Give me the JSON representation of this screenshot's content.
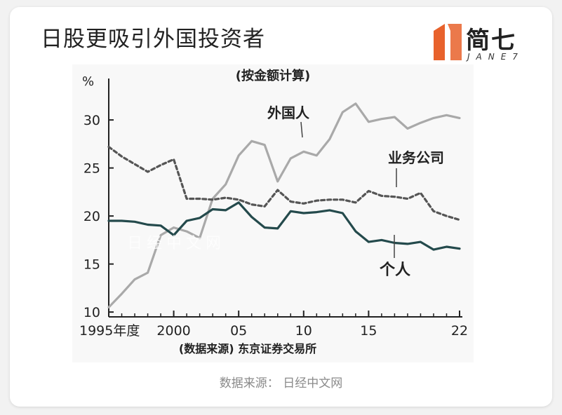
{
  "header": {
    "title": "日股更吸引外国投资者"
  },
  "brand": {
    "name": "简七",
    "sub": "JANE7",
    "accent_color": "#e8622c"
  },
  "chart_data": {
    "type": "line",
    "subtitle": "(按金额计算)",
    "ylabel": "%",
    "source_note": "(数据来源) 东京证券交易所",
    "ylim": [
      9.5,
      33
    ],
    "yticks": [
      10,
      15,
      20,
      25,
      30
    ],
    "xlim": [
      1995,
      2022
    ],
    "xticks": [
      {
        "value": 1995,
        "label": "1995年度"
      },
      {
        "value": 2000,
        "label": "2000"
      },
      {
        "value": 2005,
        "label": "05"
      },
      {
        "value": 2010,
        "label": "10"
      },
      {
        "value": 2015,
        "label": "15"
      },
      {
        "value": 2022,
        "label": "22"
      }
    ],
    "x": [
      1995,
      1996,
      1997,
      1998,
      1999,
      2000,
      2001,
      2002,
      2003,
      2004,
      2005,
      2006,
      2007,
      2008,
      2009,
      2010,
      2011,
      2012,
      2013,
      2014,
      2015,
      2016,
      2017,
      2018,
      2019,
      2020,
      2021,
      2022
    ],
    "series": [
      {
        "name": "外国人",
        "color": "#a9a9a9",
        "dash": "",
        "values": [
          10.5,
          11.9,
          13.4,
          14.1,
          18.0,
          18.8,
          18.4,
          17.7,
          21.8,
          23.3,
          26.3,
          27.8,
          27.4,
          23.6,
          26.0,
          26.7,
          26.3,
          28.0,
          30.8,
          31.7,
          29.8,
          30.1,
          30.3,
          29.1,
          29.7,
          30.2,
          30.5,
          30.2
        ]
      },
      {
        "name": "业务公司",
        "color": "#555555",
        "dash": "5,4",
        "values": [
          27.2,
          26.2,
          25.4,
          24.6,
          25.3,
          25.9,
          21.8,
          21.8,
          21.7,
          21.9,
          21.7,
          21.2,
          21.0,
          22.7,
          21.5,
          21.3,
          21.6,
          21.7,
          21.7,
          21.4,
          22.6,
          22.1,
          22.0,
          21.8,
          22.4,
          20.5,
          20.0,
          19.6
        ]
      },
      {
        "name": "个人",
        "color": "#244a4c",
        "dash": "",
        "values": [
          19.5,
          19.5,
          19.4,
          19.1,
          19.0,
          18.0,
          19.5,
          19.8,
          20.7,
          20.6,
          21.4,
          19.9,
          18.8,
          18.7,
          20.5,
          20.3,
          20.4,
          20.6,
          20.3,
          18.4,
          17.3,
          17.5,
          17.2,
          17.1,
          17.3,
          16.5,
          16.8,
          16.6
        ]
      }
    ],
    "annotations": [
      {
        "text": "外国人",
        "series": 0
      },
      {
        "text": "业务公司",
        "series": 1
      },
      {
        "text": "个人",
        "series": 2
      }
    ],
    "watermark": "日经中文网"
  },
  "caption": "数据来源： 日经中文网"
}
